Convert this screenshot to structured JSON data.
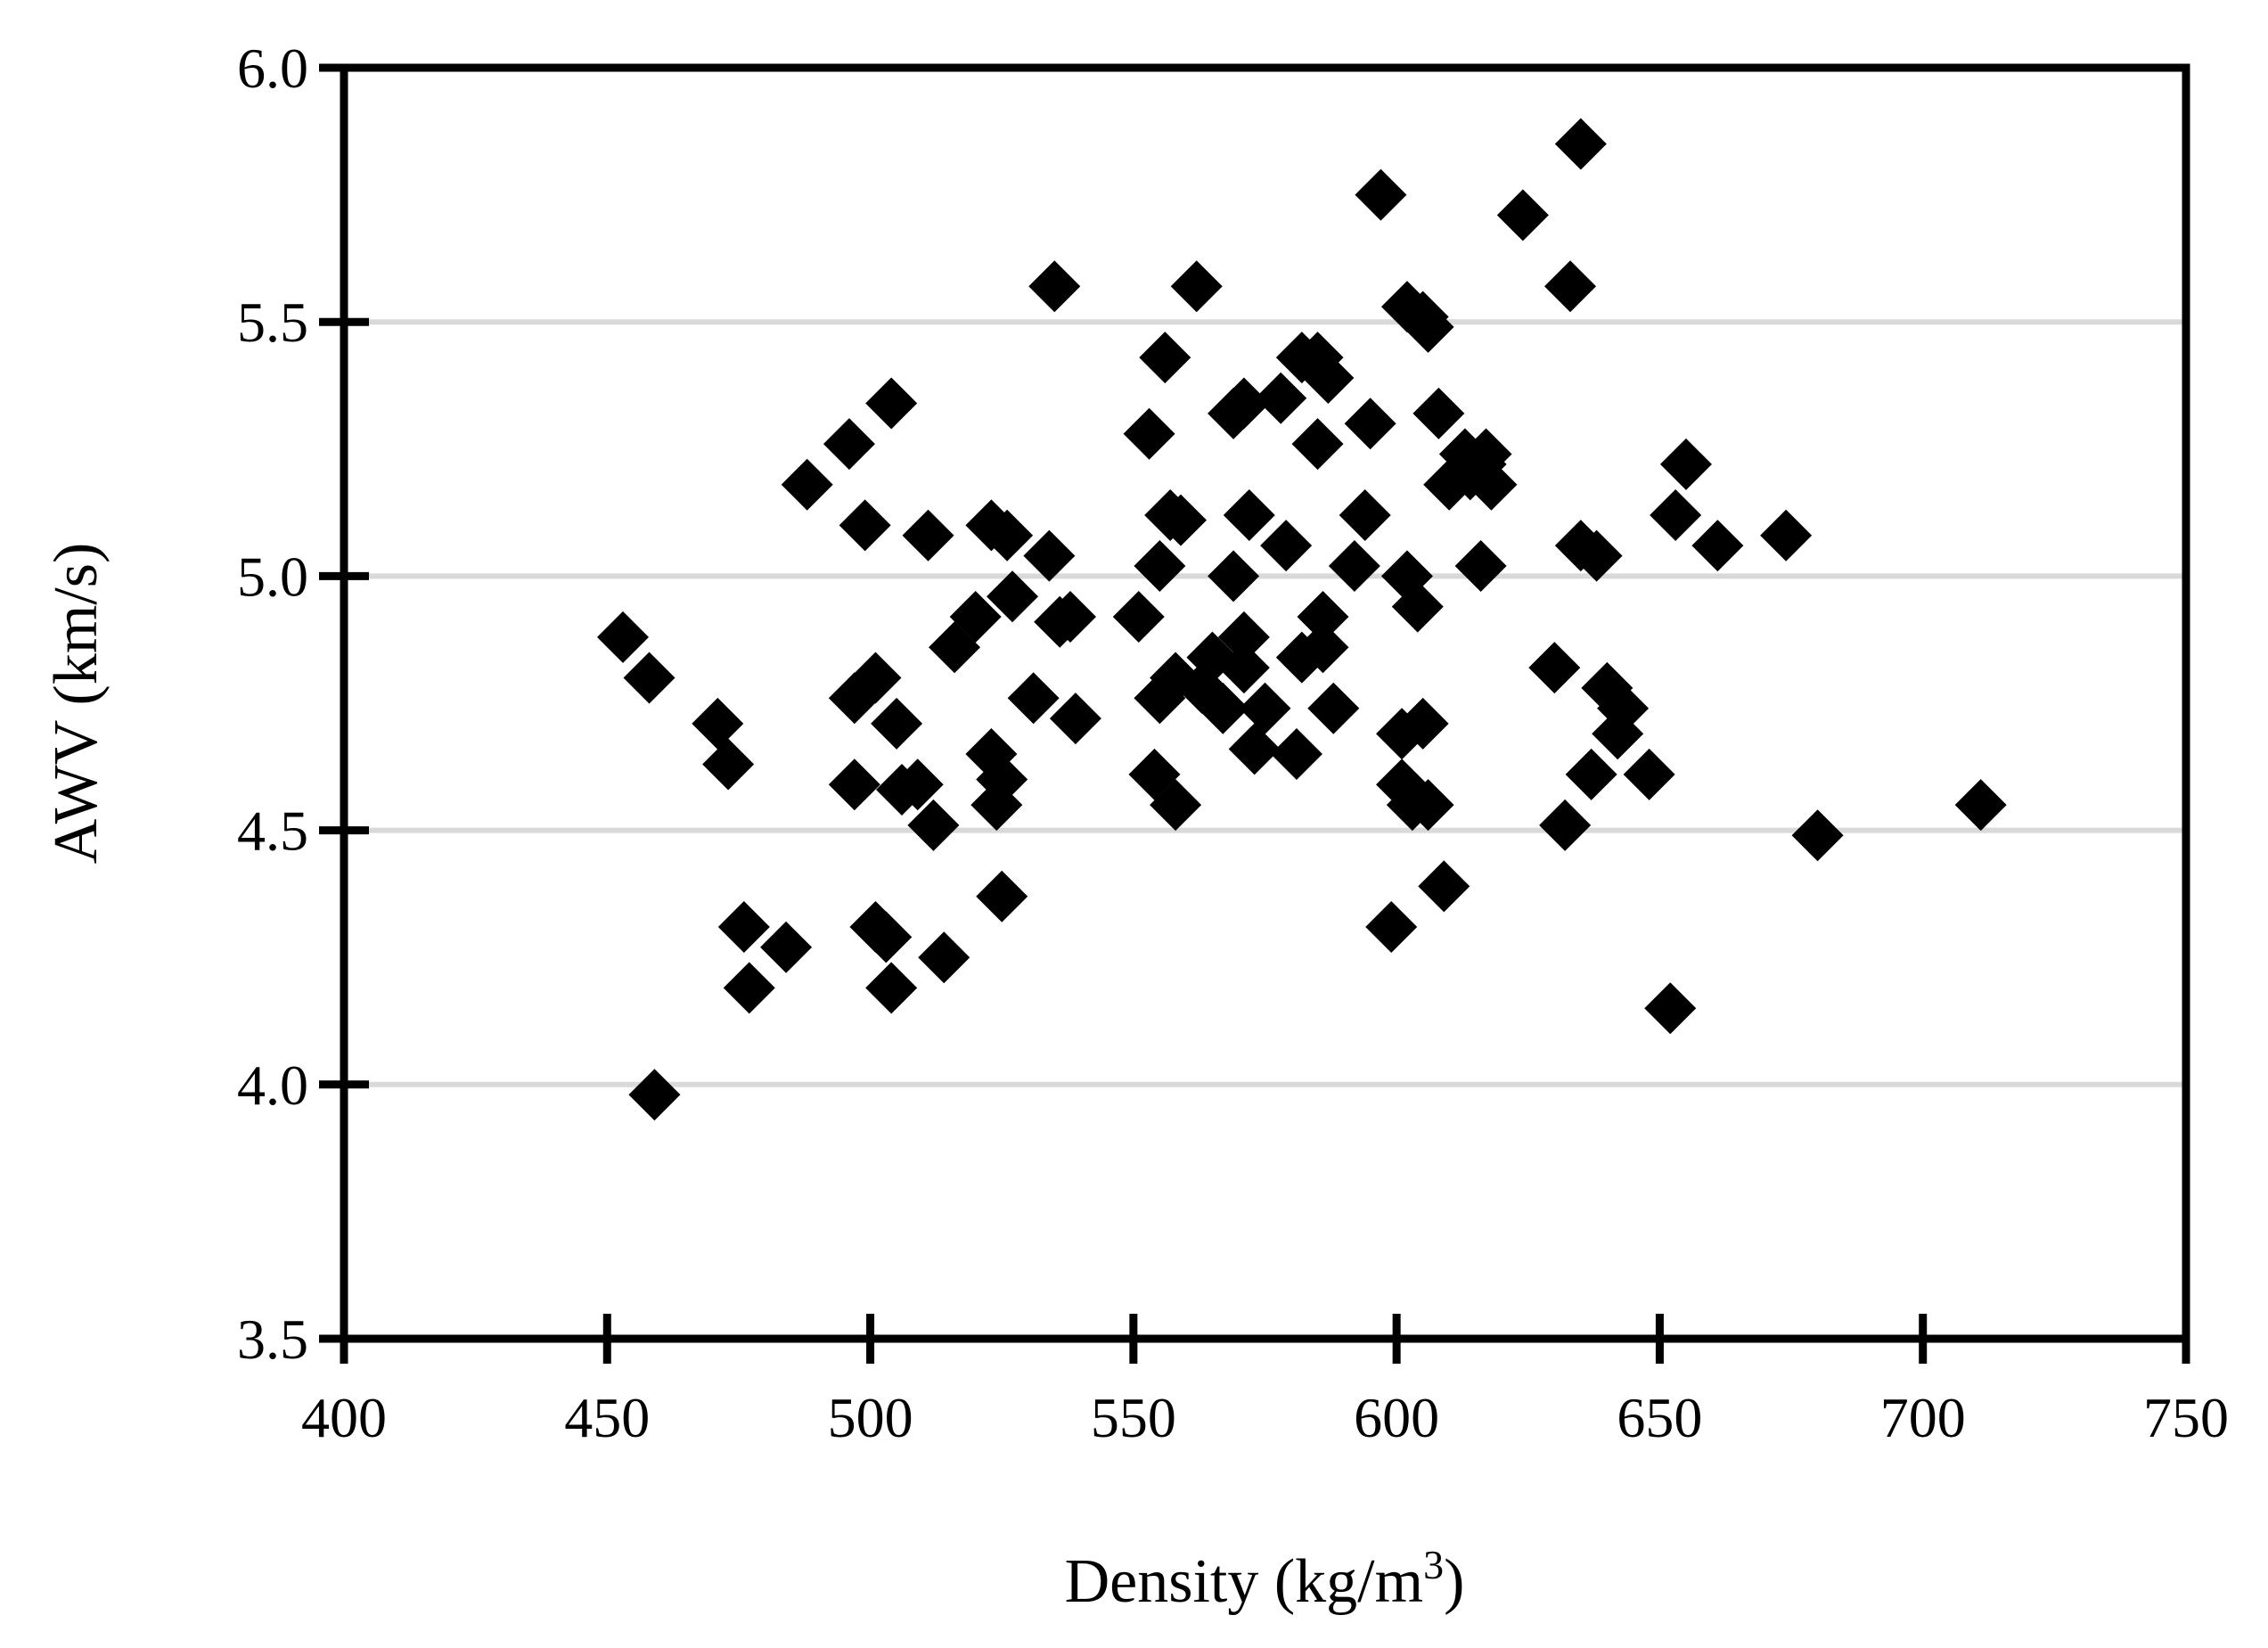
{
  "chart_data": {
    "type": "scatter",
    "title": "",
    "xlabel": "Density (kg/m",
    "xlabel_sup": "3",
    "xlabel_suffix": ")",
    "ylabel": "AWV (km/s)",
    "xlim": [
      400,
      750
    ],
    "ylim": [
      3.5,
      6.0
    ],
    "x_ticks": [
      400,
      450,
      500,
      550,
      600,
      650,
      700,
      750
    ],
    "y_ticks": [
      3.5,
      4.0,
      4.5,
      5.0,
      5.5,
      6.0
    ],
    "x_tick_labels": [
      "400",
      "450",
      "500",
      "550",
      "600",
      "650",
      "700",
      "750"
    ],
    "y_tick_labels": [
      "3.5",
      "4.0",
      "4.5",
      "5.0",
      "5.5",
      "6.0"
    ],
    "grid": "horizontal",
    "marker": "diamond",
    "marker_color": "#000000",
    "points": [
      [
        453,
        4.88
      ],
      [
        458,
        4.8
      ],
      [
        459,
        3.98
      ],
      [
        471,
        4.71
      ],
      [
        473,
        4.63
      ],
      [
        476,
        4.31
      ],
      [
        477,
        4.19
      ],
      [
        484,
        4.27
      ],
      [
        488,
        5.18
      ],
      [
        496,
        5.26
      ],
      [
        497,
        4.76
      ],
      [
        497,
        4.59
      ],
      [
        499,
        5.1
      ],
      [
        501,
        4.8
      ],
      [
        501,
        4.31
      ],
      [
        503,
        4.29
      ],
      [
        504,
        4.19
      ],
      [
        504,
        5.34
      ],
      [
        505,
        4.71
      ],
      [
        506,
        4.58
      ],
      [
        509,
        4.59
      ],
      [
        511,
        5.08
      ],
      [
        512,
        4.51
      ],
      [
        514,
        4.25
      ],
      [
        516,
        4.86
      ],
      [
        520,
        4.92
      ],
      [
        523,
        5.1
      ],
      [
        523,
        4.65
      ],
      [
        524,
        4.55
      ],
      [
        525,
        4.37
      ],
      [
        525,
        4.6
      ],
      [
        526,
        5.08
      ],
      [
        527,
        4.96
      ],
      [
        531,
        4.76
      ],
      [
        534,
        5.04
      ],
      [
        535,
        5.57
      ],
      [
        536,
        4.91
      ],
      [
        538,
        4.92
      ],
      [
        539,
        4.72
      ],
      [
        551,
        4.92
      ],
      [
        553,
        5.28
      ],
      [
        554,
        4.61
      ],
      [
        555,
        4.76
      ],
      [
        555,
        5.02
      ],
      [
        556,
        5.43
      ],
      [
        557,
        5.12
      ],
      [
        558,
        4.55
      ],
      [
        558,
        4.8
      ],
      [
        559,
        5.11
      ],
      [
        562,
        5.57
      ],
      [
        563,
        4.78
      ],
      [
        565,
        4.84
      ],
      [
        567,
        4.74
      ],
      [
        569,
        5.32
      ],
      [
        569,
        5.0
      ],
      [
        571,
        5.34
      ],
      [
        571,
        4.82
      ],
      [
        571,
        4.88
      ],
      [
        572,
        5.12
      ],
      [
        573,
        4.66
      ],
      [
        575,
        4.74
      ],
      [
        578,
        5.35
      ],
      [
        579,
        5.06
      ],
      [
        581,
        4.65
      ],
      [
        582,
        4.84
      ],
      [
        582,
        5.43
      ],
      [
        585,
        5.43
      ],
      [
        585,
        5.26
      ],
      [
        586,
        4.92
      ],
      [
        586,
        4.86
      ],
      [
        587,
        5.39
      ],
      [
        588,
        4.74
      ],
      [
        592,
        5.02
      ],
      [
        594,
        5.12
      ],
      [
        595,
        5.3
      ],
      [
        597,
        5.75
      ],
      [
        599,
        4.31
      ],
      [
        601,
        4.69
      ],
      [
        601,
        4.59
      ],
      [
        602,
        5.0
      ],
      [
        602,
        5.53
      ],
      [
        603,
        4.55
      ],
      [
        604,
        4.94
      ],
      [
        605,
        4.71
      ],
      [
        605,
        5.51
      ],
      [
        606,
        5.49
      ],
      [
        606,
        4.55
      ],
      [
        608,
        5.32
      ],
      [
        609,
        4.39
      ],
      [
        610,
        5.18
      ],
      [
        613,
        5.24
      ],
      [
        614,
        5.2
      ],
      [
        616,
        5.22
      ],
      [
        616,
        5.02
      ],
      [
        617,
        5.24
      ],
      [
        618,
        5.18
      ],
      [
        624,
        5.71
      ],
      [
        630,
        4.82
      ],
      [
        632,
        4.51
      ],
      [
        633,
        5.57
      ],
      [
        635,
        5.85
      ],
      [
        635,
        5.06
      ],
      [
        637,
        4.61
      ],
      [
        638,
        5.04
      ],
      [
        640,
        4.78
      ],
      [
        642,
        4.69
      ],
      [
        643,
        4.74
      ],
      [
        648,
        4.61
      ],
      [
        652,
        4.15
      ],
      [
        653,
        5.12
      ],
      [
        655,
        5.22
      ],
      [
        661,
        5.06
      ],
      [
        674,
        5.08
      ],
      [
        680,
        4.49
      ],
      [
        711,
        4.55
      ]
    ]
  }
}
